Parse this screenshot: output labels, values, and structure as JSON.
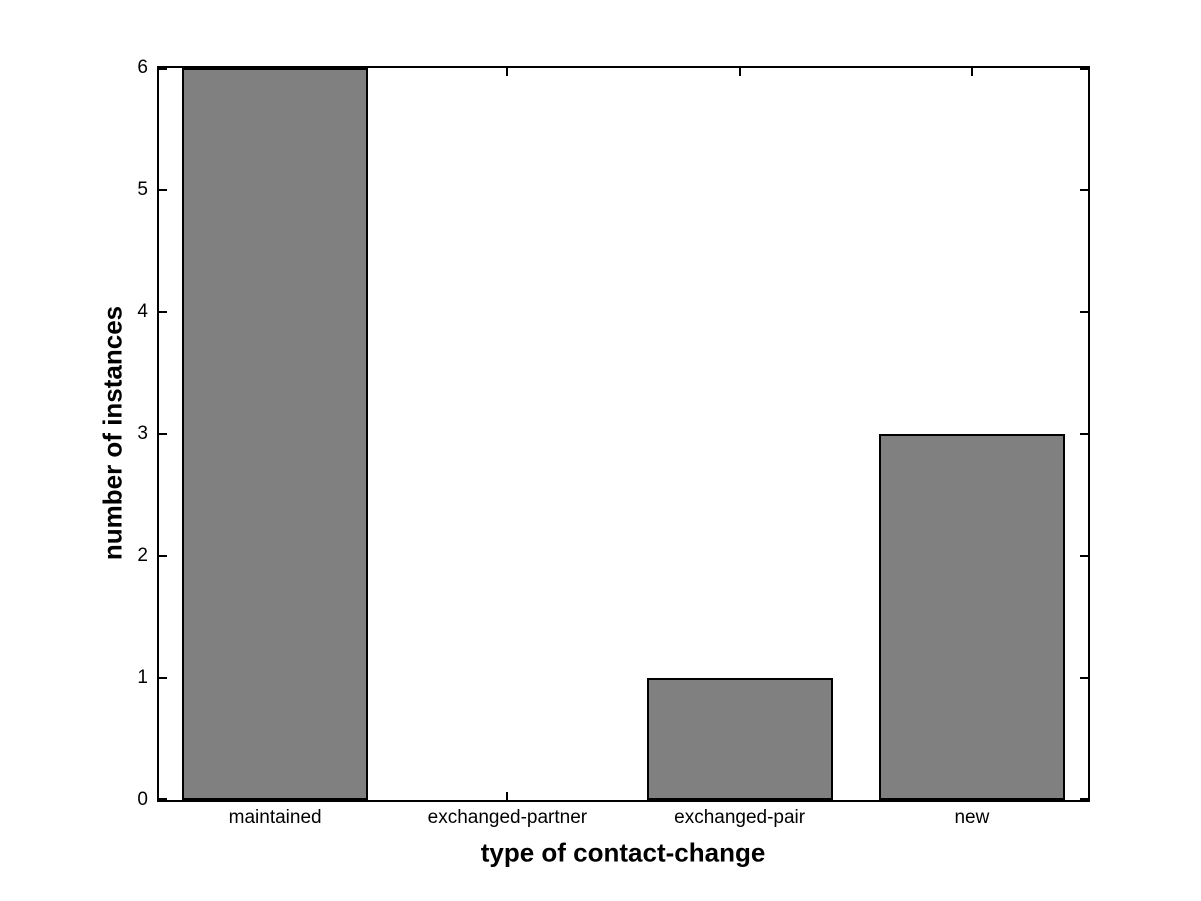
{
  "chart_data": {
    "type": "bar",
    "xlabel": "type of contact-change",
    "ylabel": "number of instances",
    "categories": [
      "maintained",
      "exchanged-partner",
      "exchanged-pair",
      "new"
    ],
    "values": [
      6,
      0,
      1,
      3
    ],
    "ylim": [
      0,
      6
    ],
    "yticks": [
      0,
      1,
      2,
      3,
      4,
      5,
      6
    ],
    "bar_color": "#808080",
    "bar_edge_color": "#000000",
    "axis_color": "#000000",
    "background_color": "#ffffff",
    "bar_width_fraction": 0.8,
    "grid": "off",
    "legend_position": "none",
    "tick_direction": "in"
  }
}
